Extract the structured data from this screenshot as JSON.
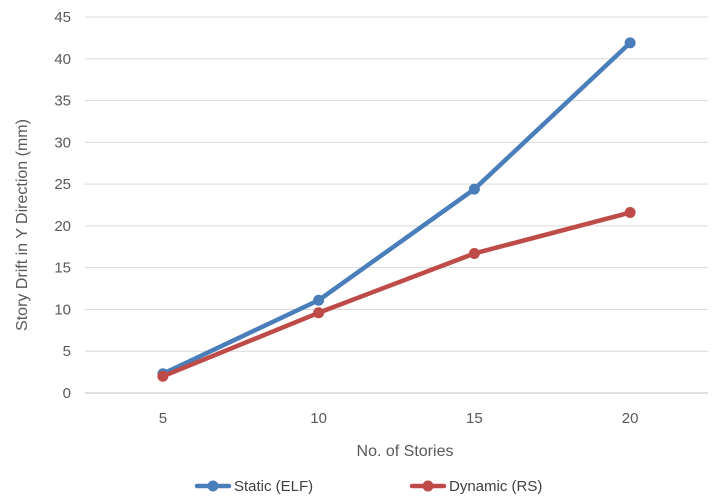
{
  "chart_data": {
    "type": "line",
    "title": "",
    "xlabel": "No. of Stories",
    "ylabel": "Story Drift in Y Direction (mm)",
    "categories": [
      "5",
      "10",
      "15",
      "20"
    ],
    "yticks": [
      "0",
      "5",
      "10",
      "15",
      "20",
      "25",
      "30",
      "35",
      "40",
      "45"
    ],
    "ylim": [
      0,
      45
    ],
    "grid": "horizontal",
    "legend_position": "bottom",
    "series": [
      {
        "name": "Static (ELF)",
        "color": "#4A7EBB",
        "values": [
          2.3,
          11.1,
          24.4,
          41.9
        ]
      },
      {
        "name": "Dynamic (RS)",
        "color": "#BE4B48",
        "values": [
          2.0,
          9.6,
          16.7,
          21.6
        ]
      }
    ]
  }
}
